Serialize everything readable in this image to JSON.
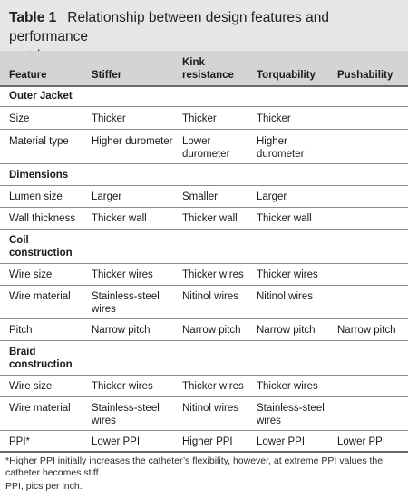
{
  "table": {
    "number": "Table 1",
    "title_line1": "Relationship between design features and performance",
    "title_line2": "metrics",
    "headers": {
      "feature": "Feature",
      "stiffer": "Stiffer",
      "kink_line1": "Kink",
      "kink_line2": "resistance",
      "torquability": "Torquability",
      "pushability": "Pushability"
    },
    "sections": {
      "outer_jacket": "Outer Jacket",
      "dimensions": "Dimensions",
      "coil_line1": "Coil",
      "coil_line2": "construction",
      "braid_line1": "Braid",
      "braid_line2": "construction"
    },
    "rows": {
      "size": [
        "Size",
        "Thicker",
        "Thicker",
        "Thicker"
      ],
      "material_type": {
        "feature": "Material type",
        "stiffer": "Higher durometer",
        "kink_1": "Lower",
        "kink_2": "durometer",
        "torq_1": "Higher",
        "torq_2": "durometer"
      },
      "lumen_size": [
        "Lumen size",
        "Larger",
        "Smaller",
        "Larger"
      ],
      "wall_thickness": [
        "Wall thickness",
        "Thicker wall",
        "Thicker wall",
        "Thicker wall"
      ],
      "coil_wire_size": [
        "Wire size",
        "Thicker wires",
        "Thicker wires",
        "Thicker wires"
      ],
      "coil_wire_material": {
        "feature": "Wire material",
        "stiffer_1": "Stainless-steel",
        "stiffer_2": "wires",
        "kink": "Nitinol wires",
        "torq": "Nitinol wires"
      },
      "pitch": [
        "Pitch",
        "Narrow pitch",
        "Narrow pitch",
        "Narrow pitch",
        "Narrow pitch"
      ],
      "braid_wire_size": [
        "Wire size",
        "Thicker wires",
        "Thicker wires",
        "Thicker wires"
      ],
      "braid_wire_material": {
        "feature": "Wire material",
        "stiffer_1": "Stainless-steel",
        "stiffer_2": "wires",
        "kink": "Nitinol wires",
        "torq_1": "Stainless-steel",
        "torq_2": "wires"
      },
      "ppi": [
        "PPI*",
        "Lower PPI",
        "Higher PPI",
        "Lower PPI",
        "Lower PPI"
      ]
    },
    "footnote_1": "*Higher PPI initially increases the catheter’s flexibility, however, at extreme PPI values the",
    "footnote_2": "catheter becomes stiff.",
    "footnote_3": "PPI, pics per inch."
  }
}
